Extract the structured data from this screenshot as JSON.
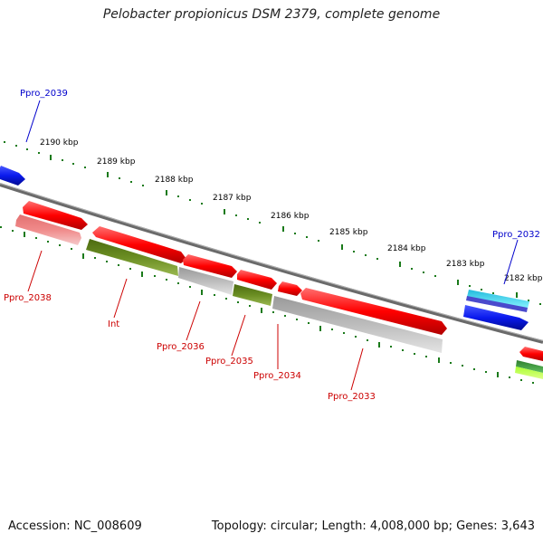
{
  "title": "Pelobacter propionicus DSM 2379, complete genome",
  "footer": {
    "accession": "Accession: NC_008609",
    "topology": "Topology: circular; Length: 4,008,000 bp; Genes: 3,643"
  },
  "colors": {
    "tick": "#1a7a1a",
    "backbone": "#777777",
    "red_gene": "#ff0000",
    "pink_gene": "#f08080",
    "olive_gene": "#6b8e23",
    "gray_gene": "#b8b8b8",
    "blue_gene": "#0a1aee",
    "cyan_gene": "#33ddee",
    "label_red": "#cc0000",
    "label_blue": "#0000cc"
  },
  "kbp_ticks": [
    "2190 kbp",
    "2189 kbp",
    "2188 kbp",
    "2187 kbp",
    "2186 kbp",
    "2185 kbp",
    "2184 kbp",
    "2183 kbp",
    "2182 kbp"
  ],
  "gene_labels": [
    "Ppro_2039",
    "Ppro_2032",
    "Ppro_2038",
    "Int",
    "Ppro_2036",
    "Ppro_2035",
    "Ppro_2034",
    "Ppro_2033"
  ]
}
